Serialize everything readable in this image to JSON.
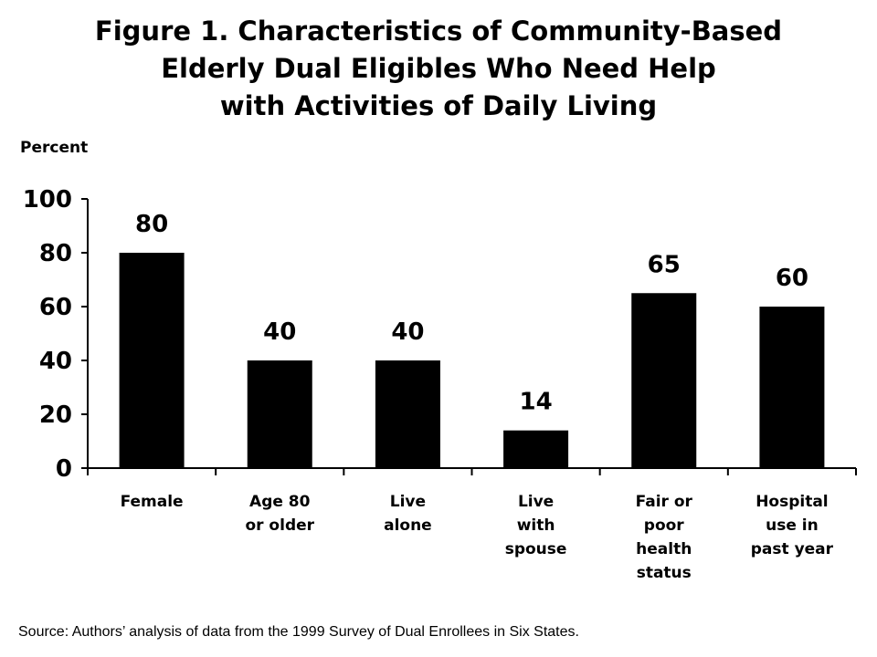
{
  "title_lines": [
    "Figure 1. Characteristics of Community-Based",
    "Elderly Dual Eligibles Who Need Help",
    "with Activities of Daily Living"
  ],
  "source": "Source: Authors’ analysis of data from the 1999 Survey of Dual Enrollees in Six States.",
  "chart_data": {
    "type": "bar",
    "title": "Figure 1. Characteristics of Community-Based Elderly Dual Eligibles Who Need Help with Activities of Daily Living",
    "ylabel": "Percent",
    "xlabel": "",
    "ylim": [
      0,
      100
    ],
    "yticks": [
      0,
      20,
      40,
      60,
      80,
      100
    ],
    "categories": [
      [
        "Female"
      ],
      [
        "Age 80",
        "or older"
      ],
      [
        "Live",
        "alone"
      ],
      [
        "Live",
        "with",
        "spouse"
      ],
      [
        "Fair or",
        "poor",
        "health",
        "status"
      ],
      [
        "Hospital",
        "use in",
        "past year"
      ]
    ],
    "values": [
      80,
      40,
      40,
      14,
      65,
      60
    ],
    "data_labels": [
      "80",
      "40",
      "40",
      "14",
      "65",
      "60"
    ],
    "bar_color": "#000000",
    "grid": false,
    "legend": "none"
  }
}
